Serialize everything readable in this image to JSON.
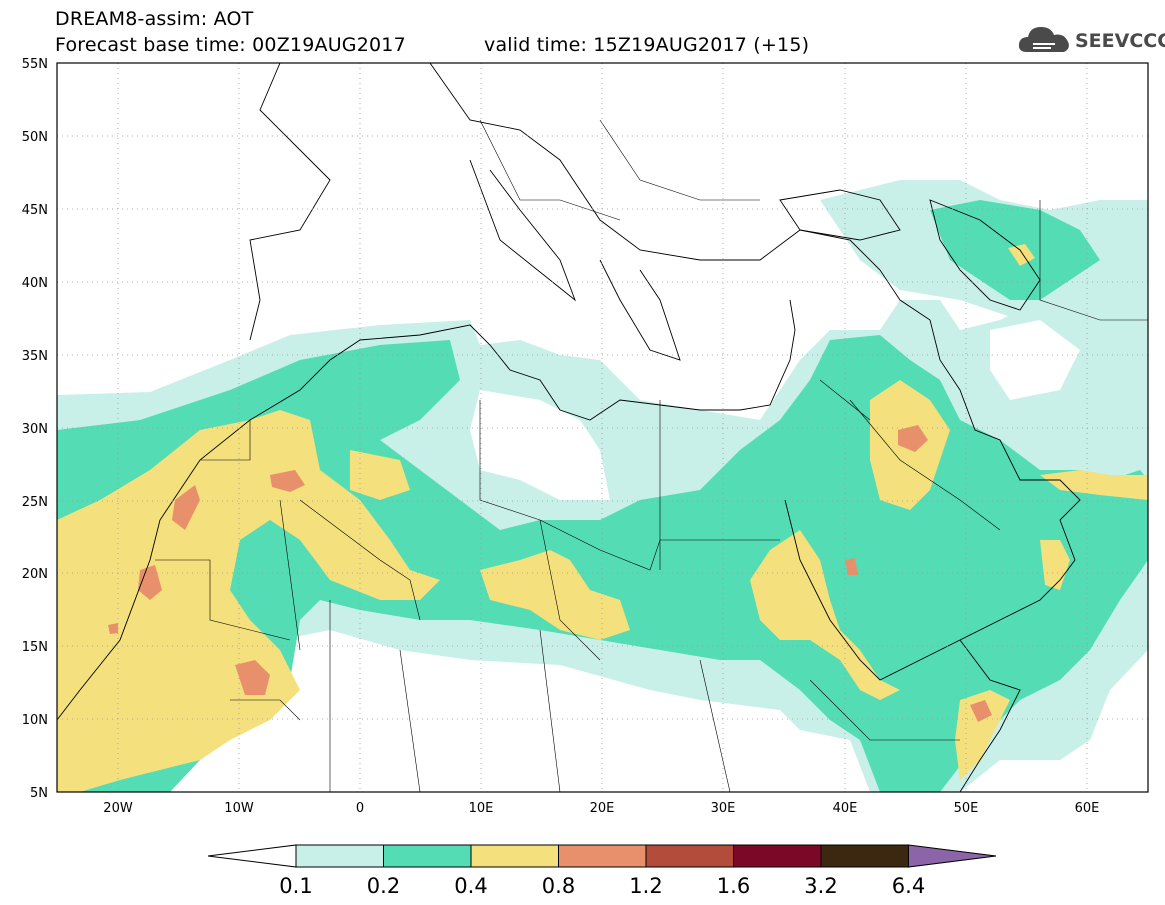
{
  "header": {
    "title_line1": "DREAM8-assim: AOT",
    "title_line2": "Forecast base time: 00Z19AUG2017",
    "valid_time": "valid time: 15Z19AUG2017 (+15)"
  },
  "logo": {
    "text": "SEEVCCC",
    "icon": "cloud-icon"
  },
  "map": {
    "lat_labels": [
      "55N",
      "50N",
      "45N",
      "40N",
      "35N",
      "30N",
      "25N",
      "20N",
      "15N",
      "10N",
      "5N"
    ],
    "lon_labels": [
      "20W",
      "10W",
      "0",
      "10E",
      "20E",
      "30E",
      "40E",
      "50E",
      "60E"
    ],
    "lat_range": [
      5,
      55
    ],
    "lon_range": [
      -25,
      65
    ],
    "grid": "dotted",
    "projection": "lat-lon"
  },
  "colorbar": {
    "levels": [
      "0.1",
      "0.2",
      "0.4",
      "0.8",
      "1.2",
      "1.6",
      "3.2",
      "6.4"
    ],
    "colors": [
      "#ffffff",
      "#c8f0e8",
      "#54dcb4",
      "#f4e07c",
      "#e8906c",
      "#b44c3c",
      "#7c0828",
      "#3c2810",
      "#8c64a8"
    ]
  }
}
